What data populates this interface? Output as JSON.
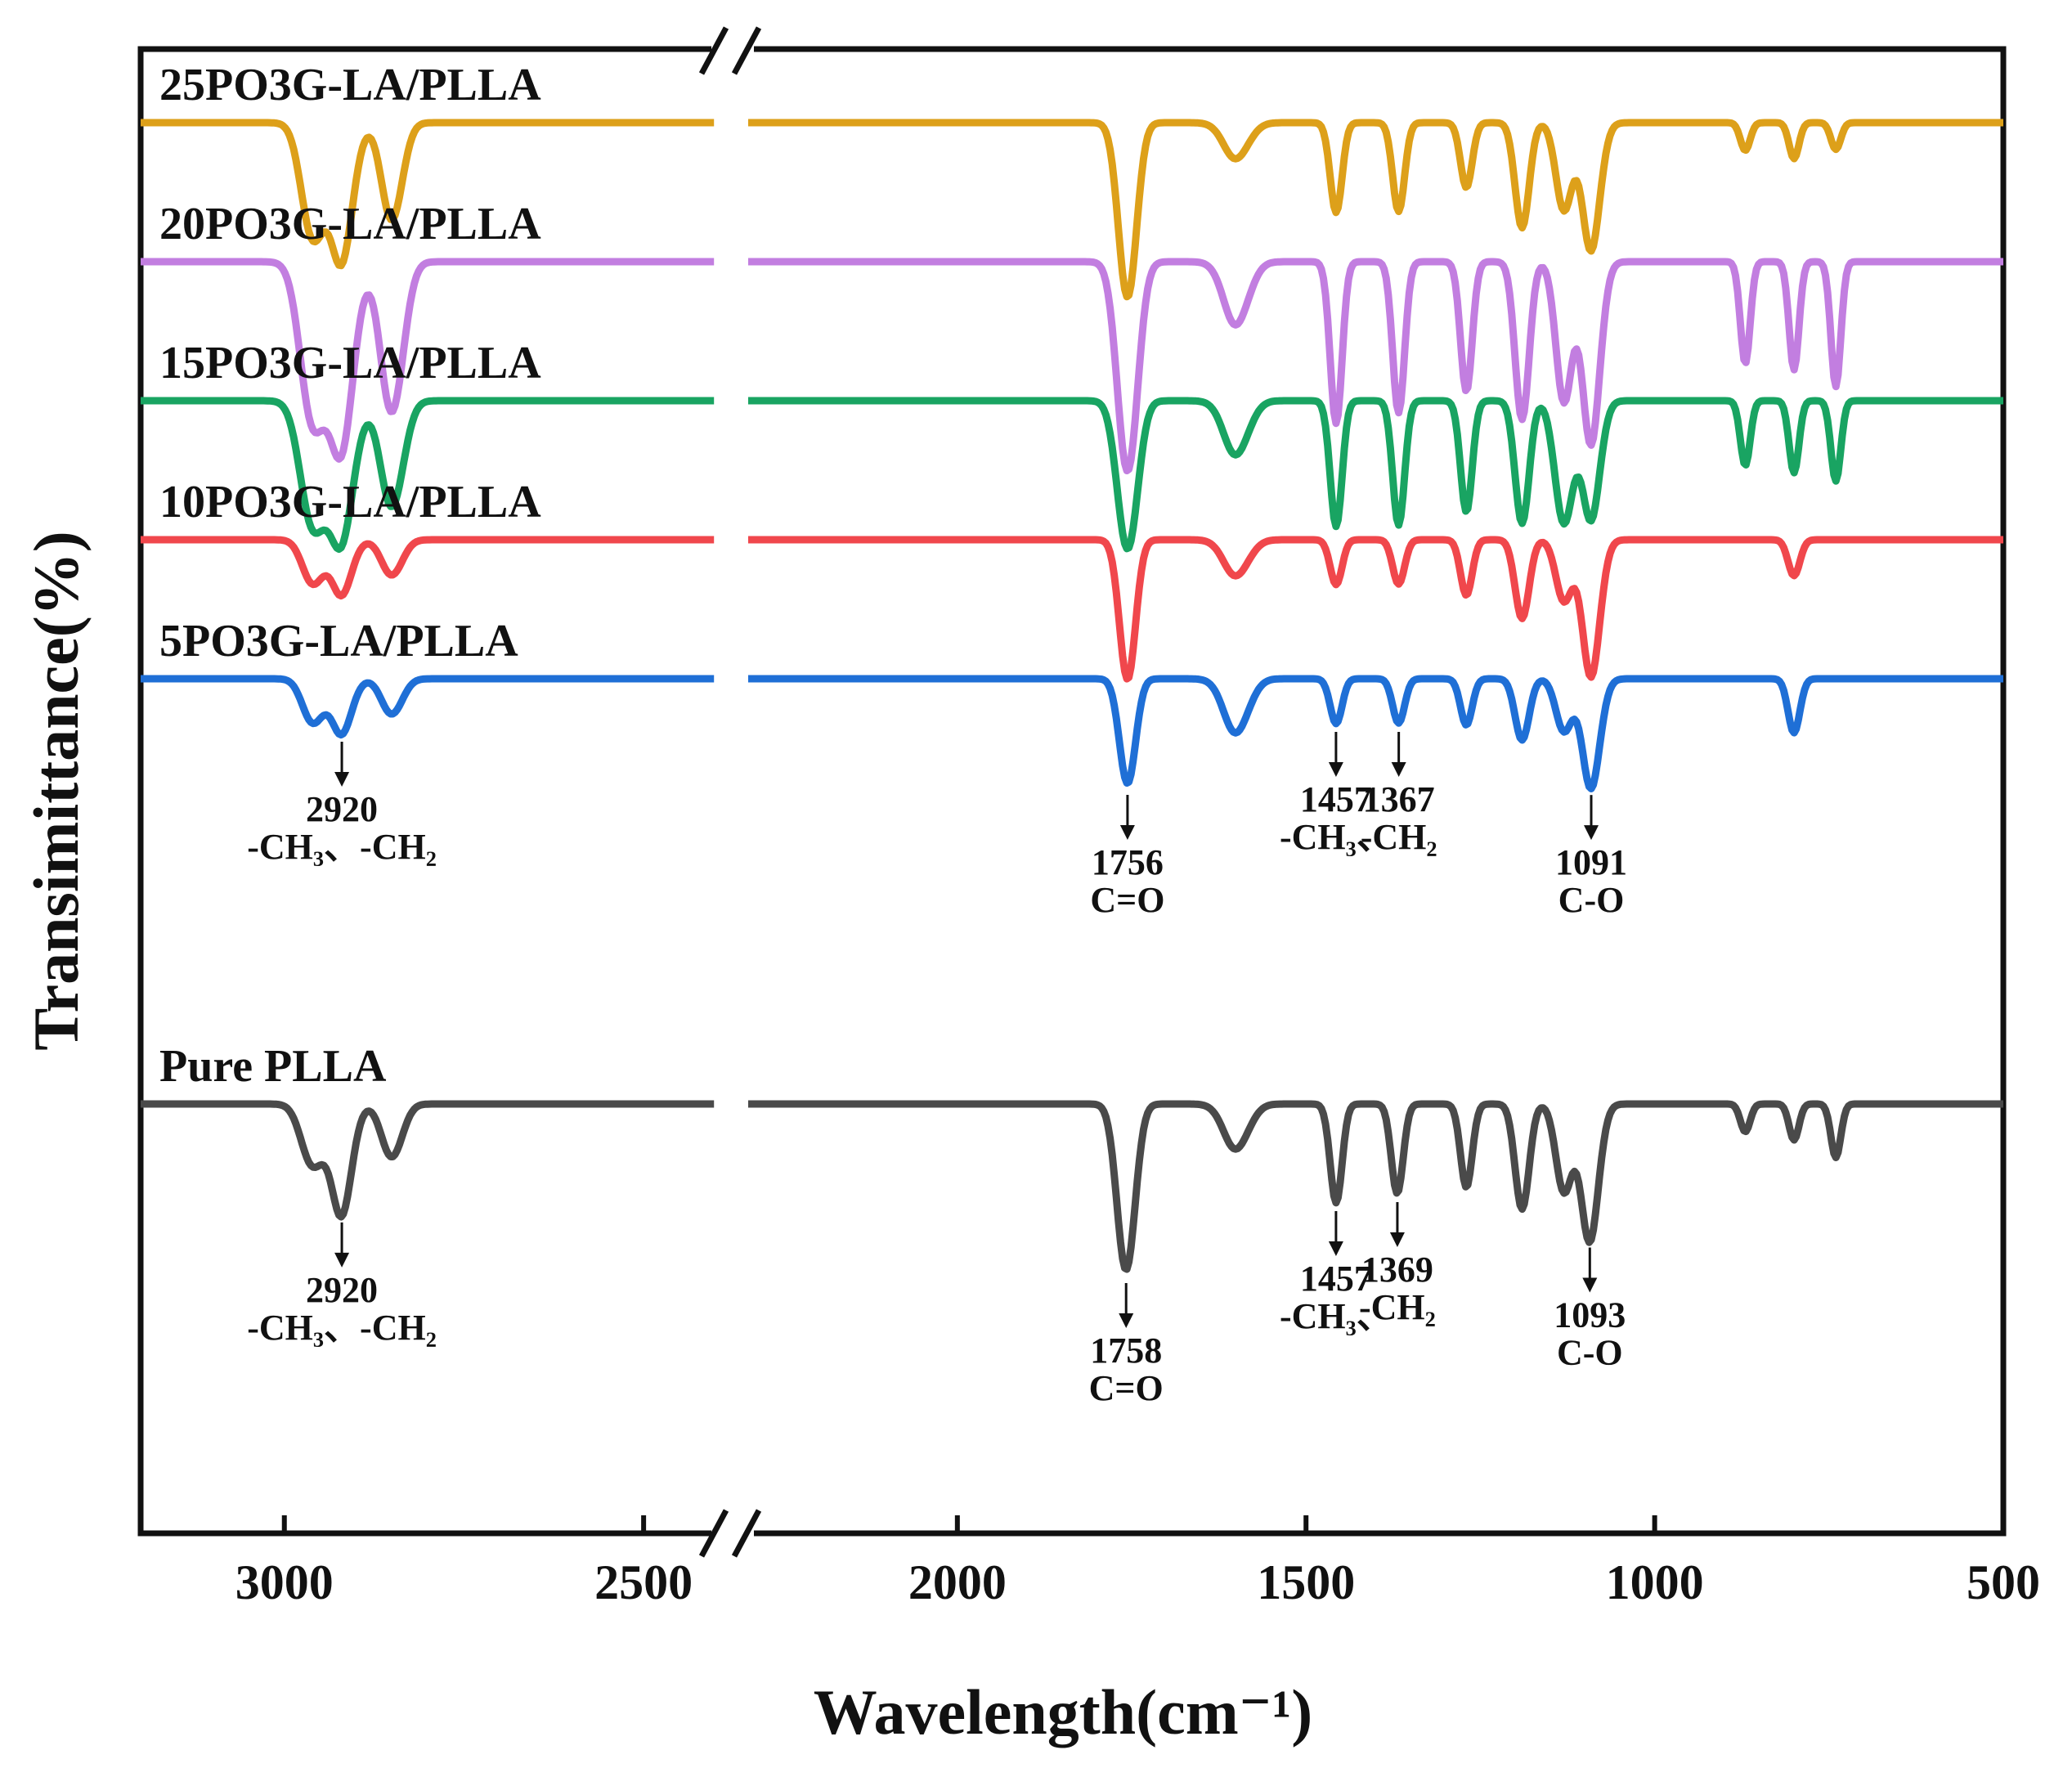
{
  "chart_data": {
    "type": "line",
    "title": "",
    "xlabel": "Wavelength(cm⁻¹)",
    "ylabel": "Transimittance(%)",
    "xlim": [
      3200,
      500
    ],
    "x_break": [
      2400,
      2300
    ],
    "xticks": [
      "3000",
      "2500",
      "2000",
      "1500",
      "1000",
      "500"
    ],
    "grid": false,
    "series": [
      {
        "name": "25PO3G-LA/PLLA",
        "color": "#DDA01A",
        "offset": 6,
        "peaks": [
          {
            "x": 2960,
            "depth": 0.65,
            "width": 22
          },
          {
            "x": 2920,
            "depth": 0.75,
            "width": 22
          },
          {
            "x": 2850,
            "depth": 0.55,
            "width": 20
          },
          {
            "x": 1756,
            "depth": 1.0,
            "width": 18
          },
          {
            "x": 1600,
            "depth": 0.2,
            "width": 25
          },
          {
            "x": 1457,
            "depth": 0.5,
            "width": 12
          },
          {
            "x": 1367,
            "depth": 0.5,
            "width": 12
          },
          {
            "x": 1270,
            "depth": 0.35,
            "width": 12
          },
          {
            "x": 1190,
            "depth": 0.6,
            "width": 14
          },
          {
            "x": 1130,
            "depth": 0.5,
            "width": 16
          },
          {
            "x": 1091,
            "depth": 0.7,
            "width": 18
          },
          {
            "x": 870,
            "depth": 0.15,
            "width": 10
          },
          {
            "x": 800,
            "depth": 0.2,
            "width": 10
          },
          {
            "x": 740,
            "depth": 0.15,
            "width": 10
          }
        ]
      },
      {
        "name": "20PO3G-LA/PLLA",
        "color": "#C27EE0",
        "offset": 5,
        "peaks": [
          {
            "x": 2960,
            "depth": 0.9,
            "width": 24
          },
          {
            "x": 2920,
            "depth": 1.0,
            "width": 24
          },
          {
            "x": 2850,
            "depth": 0.85,
            "width": 22
          },
          {
            "x": 1756,
            "depth": 1.2,
            "width": 20
          },
          {
            "x": 1600,
            "depth": 0.35,
            "width": 25
          },
          {
            "x": 1457,
            "depth": 0.9,
            "width": 12
          },
          {
            "x": 1367,
            "depth": 0.85,
            "width": 12
          },
          {
            "x": 1270,
            "depth": 0.7,
            "width": 12
          },
          {
            "x": 1190,
            "depth": 0.9,
            "width": 14
          },
          {
            "x": 1130,
            "depth": 0.8,
            "width": 16
          },
          {
            "x": 1091,
            "depth": 1.0,
            "width": 18
          },
          {
            "x": 870,
            "depth": 0.55,
            "width": 10
          },
          {
            "x": 800,
            "depth": 0.6,
            "width": 10
          },
          {
            "x": 740,
            "depth": 0.7,
            "width": 10
          }
        ]
      },
      {
        "name": "15PO3G-LA/PLLA",
        "color": "#19A462",
        "offset": 4,
        "peaks": [
          {
            "x": 2960,
            "depth": 0.7,
            "width": 24
          },
          {
            "x": 2920,
            "depth": 0.75,
            "width": 24
          },
          {
            "x": 2850,
            "depth": 0.6,
            "width": 22
          },
          {
            "x": 1756,
            "depth": 0.85,
            "width": 20
          },
          {
            "x": 1600,
            "depth": 0.3,
            "width": 25
          },
          {
            "x": 1457,
            "depth": 0.7,
            "width": 12
          },
          {
            "x": 1367,
            "depth": 0.7,
            "width": 12
          },
          {
            "x": 1270,
            "depth": 0.6,
            "width": 12
          },
          {
            "x": 1190,
            "depth": 0.7,
            "width": 14
          },
          {
            "x": 1130,
            "depth": 0.7,
            "width": 18
          },
          {
            "x": 1091,
            "depth": 0.65,
            "width": 18
          },
          {
            "x": 870,
            "depth": 0.35,
            "width": 10
          },
          {
            "x": 800,
            "depth": 0.4,
            "width": 10
          },
          {
            "x": 740,
            "depth": 0.45,
            "width": 10
          }
        ]
      },
      {
        "name": "10PO3G-LA/PLLA",
        "color": "#F0474C",
        "offset": 3,
        "peaks": [
          {
            "x": 2960,
            "depth": 0.25,
            "width": 20
          },
          {
            "x": 2920,
            "depth": 0.3,
            "width": 20
          },
          {
            "x": 2850,
            "depth": 0.2,
            "width": 20
          },
          {
            "x": 1756,
            "depth": 0.8,
            "width": 16
          },
          {
            "x": 1600,
            "depth": 0.2,
            "width": 25
          },
          {
            "x": 1457,
            "depth": 0.25,
            "width": 12
          },
          {
            "x": 1367,
            "depth": 0.25,
            "width": 12
          },
          {
            "x": 1270,
            "depth": 0.3,
            "width": 12
          },
          {
            "x": 1190,
            "depth": 0.45,
            "width": 14
          },
          {
            "x": 1130,
            "depth": 0.35,
            "width": 16
          },
          {
            "x": 1091,
            "depth": 0.75,
            "width": 18
          },
          {
            "x": 800,
            "depth": 0.2,
            "width": 12
          }
        ]
      },
      {
        "name": "5PO3G-LA/PLLA",
        "color": "#1F6FD6",
        "offset": 2,
        "peaks": [
          {
            "x": 2960,
            "depth": 0.25,
            "width": 20
          },
          {
            "x": 2920,
            "depth": 0.3,
            "width": 20
          },
          {
            "x": 2850,
            "depth": 0.2,
            "width": 20
          },
          {
            "x": 1756,
            "depth": 0.6,
            "width": 16
          },
          {
            "x": 1600,
            "depth": 0.3,
            "width": 25
          },
          {
            "x": 1457,
            "depth": 0.25,
            "width": 12
          },
          {
            "x": 1367,
            "depth": 0.25,
            "width": 12
          },
          {
            "x": 1270,
            "depth": 0.25,
            "width": 12
          },
          {
            "x": 1190,
            "depth": 0.35,
            "width": 14
          },
          {
            "x": 1130,
            "depth": 0.3,
            "width": 16
          },
          {
            "x": 1091,
            "depth": 0.6,
            "width": 18
          },
          {
            "x": 800,
            "depth": 0.3,
            "width": 12
          }
        ]
      },
      {
        "name": "Pure PLLA",
        "color": "#4A4A4A",
        "offset": 0,
        "peaks": [
          {
            "x": 2960,
            "depth": 0.35,
            "width": 22
          },
          {
            "x": 2920,
            "depth": 0.6,
            "width": 20
          },
          {
            "x": 2850,
            "depth": 0.3,
            "width": 20
          },
          {
            "x": 1758,
            "depth": 0.95,
            "width": 18
          },
          {
            "x": 1600,
            "depth": 0.25,
            "width": 25
          },
          {
            "x": 1457,
            "depth": 0.55,
            "width": 12
          },
          {
            "x": 1369,
            "depth": 0.5,
            "width": 12
          },
          {
            "x": 1270,
            "depth": 0.45,
            "width": 12
          },
          {
            "x": 1190,
            "depth": 0.6,
            "width": 14
          },
          {
            "x": 1130,
            "depth": 0.5,
            "width": 16
          },
          {
            "x": 1093,
            "depth": 0.75,
            "width": 18
          },
          {
            "x": 870,
            "depth": 0.15,
            "width": 10
          },
          {
            "x": 800,
            "depth": 0.2,
            "width": 10
          },
          {
            "x": 740,
            "depth": 0.3,
            "width": 10
          }
        ]
      }
    ],
    "annotations": [
      {
        "series": "5PO3G-LA/PLLA",
        "x": 2920,
        "labels": [
          "2920",
          "-CH₃、-CH₂"
        ]
      },
      {
        "series": "5PO3G-LA/PLLA",
        "x": 1756,
        "labels": [
          "1756",
          "C=O"
        ]
      },
      {
        "series": "5PO3G-LA/PLLA",
        "x": 1457,
        "labels": [
          "1457",
          "-CH₃、"
        ]
      },
      {
        "series": "5PO3G-LA/PLLA",
        "x": 1367,
        "labels": [
          "1367",
          "-CH₂"
        ]
      },
      {
        "series": "5PO3G-LA/PLLA",
        "x": 1091,
        "labels": [
          "1091",
          "C-O"
        ]
      },
      {
        "series": "Pure PLLA",
        "x": 2920,
        "labels": [
          "2920",
          "-CH₃、-CH₂"
        ]
      },
      {
        "series": "Pure PLLA",
        "x": 1758,
        "labels": [
          "1758",
          "C=O"
        ]
      },
      {
        "series": "Pure PLLA",
        "x": 1457,
        "labels": [
          "1457",
          "-CH₃、"
        ]
      },
      {
        "series": "Pure PLLA",
        "x": 1369,
        "labels": [
          "1369",
          "-CH₂"
        ]
      },
      {
        "series": "Pure PLLA",
        "x": 1093,
        "labels": [
          "1093",
          "C-O"
        ]
      }
    ]
  }
}
